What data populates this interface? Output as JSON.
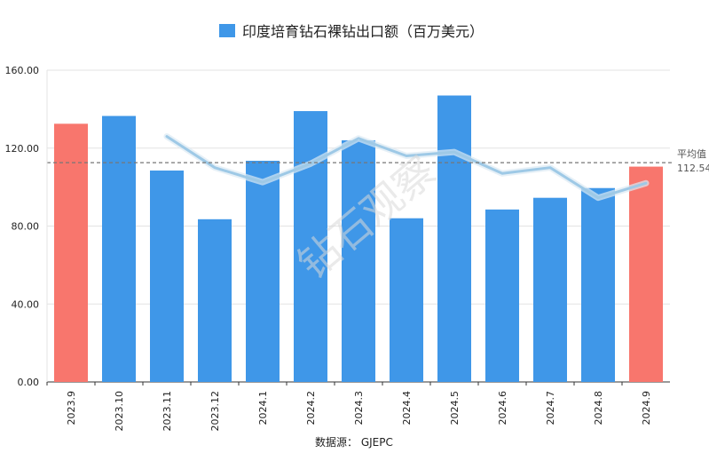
{
  "chart_data": {
    "type": "bar",
    "title": "印度培育钻石裸钻出口额（百万美元）",
    "categories": [
      "2023.9",
      "2023.10",
      "2023.11",
      "2023.12",
      "2024.1",
      "2024.2",
      "2024.3",
      "2024.4",
      "2024.5",
      "2024.6",
      "2024.7",
      "2024.8",
      "2024.9"
    ],
    "series": [
      {
        "name": "印度培育钻石裸钻出口额（百万美元）",
        "values": [
          132.5,
          136.5,
          108.5,
          83.5,
          113.5,
          139.0,
          124.0,
          84.0,
          147.0,
          88.5,
          94.5,
          99.5,
          110.5
        ],
        "colors": [
          "#F8766D",
          "#3F97E8",
          "#3F97E8",
          "#3F97E8",
          "#3F97E8",
          "#3F97E8",
          "#3F97E8",
          "#3F97E8",
          "#3F97E8",
          "#3F97E8",
          "#3F97E8",
          "#3F97E8",
          "#F8766D"
        ]
      }
    ],
    "trend_line": {
      "start_index": 2,
      "values": [
        126.0,
        110.0,
        102.5,
        112.0,
        125.0,
        116.0,
        118.0,
        107.0,
        110.0,
        94.5,
        102.0
      ],
      "color": "#9ec9e6"
    },
    "average": {
      "label": "平均值",
      "value": 112.54,
      "value_label": "112.54"
    },
    "y_ticks": [
      "0.00",
      "40.00",
      "80.00",
      "120.00",
      "160.00"
    ],
    "ylim": [
      0,
      160
    ],
    "grid": true,
    "legend": "top",
    "source_text": "数据源： GJEPC",
    "watermark": "钻石观察",
    "colors": {
      "bar": "#3F97E8",
      "highlight": "#F8766D",
      "avg_line": "#777777",
      "grid": "#e3e3e3"
    }
  }
}
